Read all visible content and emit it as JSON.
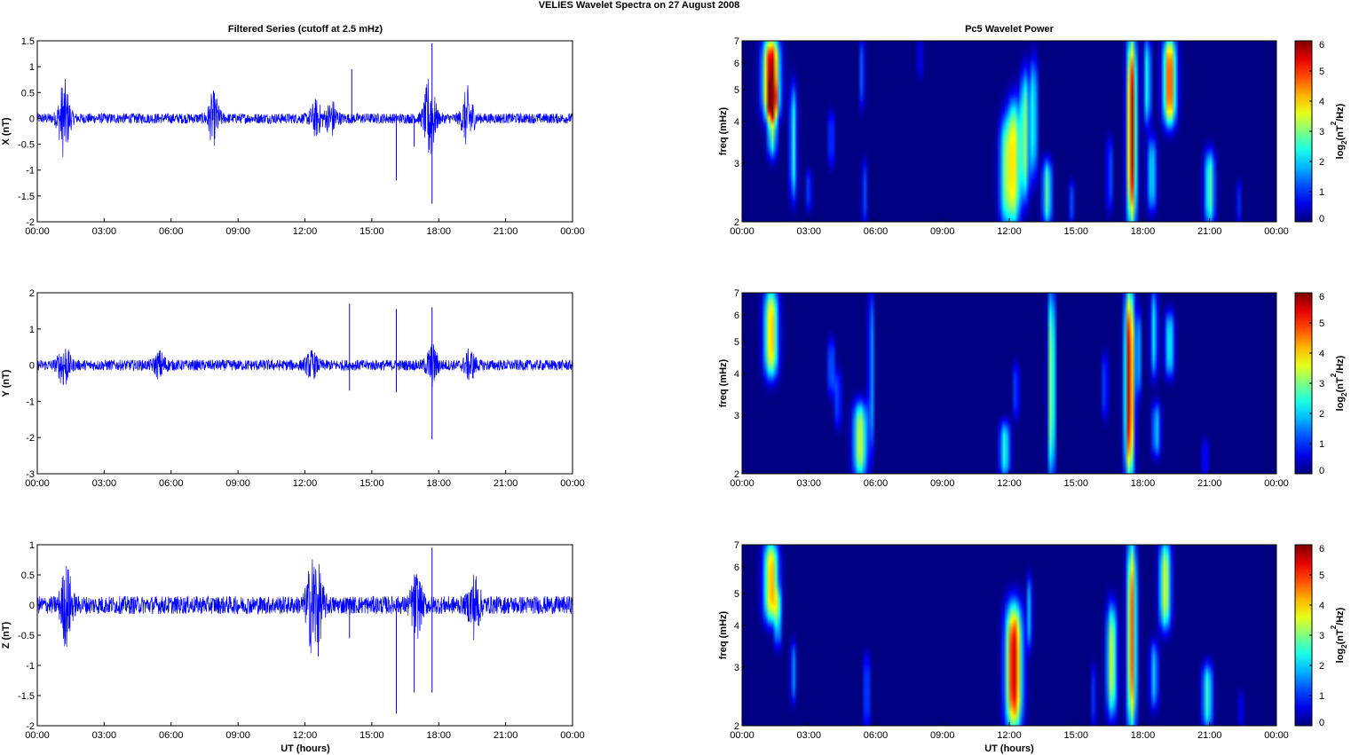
{
  "figure_title": "VELIES Wavelet Spectra on 27 August     2008",
  "left_title": "Filtered Series (cutoff at 2.5 mHz)",
  "right_title": "Pc5 Wavelet Power",
  "x_label": "UT (hours)",
  "x_tick_labels": [
    "00:00",
    "03:00",
    "06:00",
    "09:00",
    "12:00",
    "15:00",
    "18:00",
    "21:00",
    "00:00"
  ],
  "colors": {
    "trace": "#0000ff",
    "axes": "#000000",
    "background": "#ffffff"
  },
  "colorscale": "jet",
  "chart_data": [
    {
      "id": "x-series",
      "type": "line",
      "panel": "left",
      "row": 0,
      "ylabel": "X (nT)",
      "xlim": [
        0,
        24
      ],
      "ylim": [
        -2,
        1.5
      ],
      "yticks": [
        -2,
        -1.5,
        -1,
        -0.5,
        0,
        0.5,
        1,
        1.5
      ],
      "ytick_labels": [
        "-2",
        "-1.5",
        "-1",
        "-0.5",
        "0",
        "0.5",
        "1",
        "1.5"
      ],
      "baseline_amplitude": 0.1,
      "bursts": [
        {
          "t": 1.2,
          "amp": 0.7
        },
        {
          "t": 7.9,
          "amp": 0.45
        },
        {
          "t": 12.5,
          "amp": 0.3
        },
        {
          "t": 13.2,
          "amp": 0.3
        },
        {
          "t": 17.6,
          "amp": 0.8
        },
        {
          "t": 19.3,
          "amp": 0.55
        }
      ],
      "spikes": [
        {
          "t": 14.1,
          "min": -0.1,
          "max": 0.95
        },
        {
          "t": 16.1,
          "min": -1.2,
          "max": 0.05
        },
        {
          "t": 16.9,
          "min": -0.55,
          "max": 0.05
        },
        {
          "t": 17.7,
          "min": -1.65,
          "max": 1.45
        }
      ]
    },
    {
      "id": "y-series",
      "type": "line",
      "panel": "left",
      "row": 1,
      "ylabel": "Y (nT)",
      "xlim": [
        0,
        24
      ],
      "ylim": [
        -3,
        2
      ],
      "yticks": [
        -3,
        -2,
        -1,
        0,
        1,
        2
      ],
      "ytick_labels": [
        "-3",
        "-2",
        "-1",
        "0",
        "1",
        "2"
      ],
      "baseline_amplitude": 0.15,
      "bursts": [
        {
          "t": 1.2,
          "amp": 0.55
        },
        {
          "t": 5.5,
          "amp": 0.3
        },
        {
          "t": 12.3,
          "amp": 0.3
        },
        {
          "t": 17.7,
          "amp": 0.5
        },
        {
          "t": 19.4,
          "amp": 0.35
        }
      ],
      "spikes": [
        {
          "t": 14.0,
          "min": -0.7,
          "max": 1.7
        },
        {
          "t": 16.1,
          "min": -0.75,
          "max": 1.55
        },
        {
          "t": 17.7,
          "min": -2.05,
          "max": 1.6
        }
      ]
    },
    {
      "id": "z-series",
      "type": "line",
      "panel": "left",
      "row": 2,
      "ylabel": "Z (nT)",
      "xlim": [
        0,
        24
      ],
      "ylim": [
        -2,
        1
      ],
      "yticks": [
        -2,
        -1.5,
        -1,
        -0.5,
        0,
        0.5,
        1
      ],
      "ytick_labels": [
        "-2",
        "-1.5",
        "-1",
        "-0.5",
        "0",
        "0.5",
        "1"
      ],
      "baseline_amplitude": 0.15,
      "bursts": [
        {
          "t": 1.3,
          "amp": 0.6
        },
        {
          "t": 12.3,
          "amp": 0.6
        },
        {
          "t": 12.6,
          "amp": 0.45
        },
        {
          "t": 17.0,
          "amp": 0.45
        },
        {
          "t": 19.6,
          "amp": 0.45
        }
      ],
      "spikes": [
        {
          "t": 12.6,
          "min": -0.85,
          "max": 0.1
        },
        {
          "t": 14.0,
          "min": -0.55,
          "max": 0.1
        },
        {
          "t": 16.1,
          "min": -1.8,
          "max": 0.1
        },
        {
          "t": 16.9,
          "min": -1.45,
          "max": 0.25
        },
        {
          "t": 17.7,
          "min": -1.45,
          "max": 0.95
        }
      ]
    },
    {
      "id": "x-wavelet",
      "type": "heatmap",
      "panel": "right",
      "row": 0,
      "ylabel": "freq (mHz)",
      "y_scale": "log",
      "xlim": [
        0,
        24
      ],
      "ylim": [
        2,
        7
      ],
      "yticks": [
        2,
        3,
        4,
        5,
        6,
        7
      ],
      "ytick_labels": [
        "2",
        "3",
        "4",
        "5",
        "6",
        "7"
      ],
      "color_range": [
        0,
        6
      ],
      "colorbar_label_main": "log",
      "colorbar_label_sub": "2",
      "colorbar_label_paren": "(nT",
      "colorbar_label_sup": "2",
      "colorbar_label_end": "/Hz)",
      "colorbar_ticks": [
        "0",
        "1",
        "2",
        "3",
        "4",
        "5",
        "6"
      ],
      "blobs": [
        {
          "t": 1.3,
          "f_lo": 4.2,
          "f_hi": 7.0,
          "power": 6.0,
          "width": 0.35
        },
        {
          "t": 1.35,
          "f_lo": 3.2,
          "f_hi": 5.0,
          "power": 3.0,
          "width": 0.2
        },
        {
          "t": 2.3,
          "f_lo": 2.4,
          "f_hi": 5.0,
          "power": 2.5,
          "width": 0.15
        },
        {
          "t": 3.0,
          "f_lo": 2.2,
          "f_hi": 2.8,
          "power": 1.2,
          "width": 0.12
        },
        {
          "t": 4.0,
          "f_lo": 3.0,
          "f_hi": 4.2,
          "power": 1.5,
          "width": 0.12
        },
        {
          "t": 5.5,
          "f_lo": 2.0,
          "f_hi": 3.0,
          "power": 1.2,
          "width": 0.12
        },
        {
          "t": 5.4,
          "f_lo": 4.5,
          "f_hi": 7.0,
          "power": 1.5,
          "width": 0.1
        },
        {
          "t": 8.0,
          "f_lo": 5.5,
          "f_hi": 7.0,
          "power": 1.0,
          "width": 0.1
        },
        {
          "t": 11.8,
          "f_lo": 2.0,
          "f_hi": 4.0,
          "power": 2.5,
          "width": 0.25
        },
        {
          "t": 12.2,
          "f_lo": 2.0,
          "f_hi": 4.5,
          "power": 3.8,
          "width": 0.28
        },
        {
          "t": 12.7,
          "f_lo": 2.4,
          "f_hi": 5.5,
          "power": 3.0,
          "width": 0.2
        },
        {
          "t": 13.1,
          "f_lo": 2.8,
          "f_hi": 6.0,
          "power": 2.5,
          "width": 0.15
        },
        {
          "t": 13.7,
          "f_lo": 2.0,
          "f_hi": 3.0,
          "power": 2.8,
          "width": 0.2
        },
        {
          "t": 14.8,
          "f_lo": 2.0,
          "f_hi": 2.6,
          "power": 1.2,
          "width": 0.12
        },
        {
          "t": 16.5,
          "f_lo": 2.2,
          "f_hi": 3.5,
          "power": 1.5,
          "width": 0.12
        },
        {
          "t": 17.5,
          "f_lo": 2.0,
          "f_hi": 7.0,
          "power": 5.8,
          "width": 0.2
        },
        {
          "t": 18.4,
          "f_lo": 2.2,
          "f_hi": 3.5,
          "power": 2.2,
          "width": 0.2
        },
        {
          "t": 18.2,
          "f_lo": 4.0,
          "f_hi": 7.0,
          "power": 2.5,
          "width": 0.15
        },
        {
          "t": 19.2,
          "f_lo": 4.0,
          "f_hi": 7.0,
          "power": 5.0,
          "width": 0.28
        },
        {
          "t": 21.0,
          "f_lo": 2.0,
          "f_hi": 3.2,
          "power": 2.8,
          "width": 0.22
        },
        {
          "t": 22.3,
          "f_lo": 2.0,
          "f_hi": 2.6,
          "power": 1.0,
          "width": 0.1
        }
      ]
    },
    {
      "id": "y-wavelet",
      "type": "heatmap",
      "panel": "right",
      "row": 1,
      "ylabel": "freq (mHz)",
      "y_scale": "log",
      "xlim": [
        0,
        24
      ],
      "ylim": [
        2,
        7
      ],
      "yticks": [
        2,
        3,
        4,
        5,
        6,
        7
      ],
      "ytick_labels": [
        "2",
        "3",
        "4",
        "5",
        "6",
        "7"
      ],
      "color_range": [
        0,
        6
      ],
      "colorbar_label_main": "log",
      "colorbar_label_sub": "2",
      "colorbar_label_paren": "(nT",
      "colorbar_label_sup": "2",
      "colorbar_label_end": "/Hz)",
      "colorbar_ticks": [
        "0",
        "1",
        "2",
        "3",
        "4",
        "5",
        "6"
      ],
      "blobs": [
        {
          "t": 1.3,
          "f_lo": 4.0,
          "f_hi": 7.0,
          "power": 4.2,
          "width": 0.3
        },
        {
          "t": 4.0,
          "f_lo": 3.5,
          "f_hi": 5.0,
          "power": 1.5,
          "width": 0.15
        },
        {
          "t": 4.3,
          "f_lo": 2.8,
          "f_hi": 4.0,
          "power": 1.3,
          "width": 0.15
        },
        {
          "t": 5.3,
          "f_lo": 2.0,
          "f_hi": 3.2,
          "power": 3.5,
          "width": 0.3
        },
        {
          "t": 5.8,
          "f_lo": 2.4,
          "f_hi": 7.0,
          "power": 1.8,
          "width": 0.12
        },
        {
          "t": 11.8,
          "f_lo": 2.0,
          "f_hi": 2.8,
          "power": 2.5,
          "width": 0.22
        },
        {
          "t": 12.3,
          "f_lo": 3.0,
          "f_hi": 4.2,
          "power": 1.4,
          "width": 0.12
        },
        {
          "t": 13.9,
          "f_lo": 2.0,
          "f_hi": 7.0,
          "power": 3.6,
          "width": 0.14
        },
        {
          "t": 16.3,
          "f_lo": 3.0,
          "f_hi": 4.5,
          "power": 1.4,
          "width": 0.12
        },
        {
          "t": 17.4,
          "f_lo": 2.0,
          "f_hi": 7.0,
          "power": 5.8,
          "width": 0.2
        },
        {
          "t": 17.8,
          "f_lo": 3.5,
          "f_hi": 6.0,
          "power": 1.8,
          "width": 0.12
        },
        {
          "t": 18.6,
          "f_lo": 2.3,
          "f_hi": 3.2,
          "power": 2.0,
          "width": 0.18
        },
        {
          "t": 18.5,
          "f_lo": 4.0,
          "f_hi": 7.0,
          "power": 2.2,
          "width": 0.15
        },
        {
          "t": 19.2,
          "f_lo": 4.0,
          "f_hi": 6.0,
          "power": 2.4,
          "width": 0.2
        },
        {
          "t": 20.8,
          "f_lo": 2.0,
          "f_hi": 2.5,
          "power": 1.1,
          "width": 0.12
        }
      ]
    },
    {
      "id": "z-wavelet",
      "type": "heatmap",
      "panel": "right",
      "row": 2,
      "ylabel": "freq (mHz)",
      "y_scale": "log",
      "xlim": [
        0,
        24
      ],
      "ylim": [
        2,
        7
      ],
      "yticks": [
        2,
        3,
        4,
        5,
        6,
        7
      ],
      "ytick_labels": [
        "2",
        "3",
        "4",
        "5",
        "6",
        "7"
      ],
      "color_range": [
        0,
        6
      ],
      "colorbar_label_main": "log",
      "colorbar_label_sub": "2",
      "colorbar_label_paren": "(nT",
      "colorbar_label_sup": "2",
      "colorbar_label_end": "/Hz)",
      "colorbar_ticks": [
        "0",
        "1",
        "2",
        "3",
        "4",
        "5",
        "6"
      ],
      "blobs": [
        {
          "t": 1.3,
          "f_lo": 4.2,
          "f_hi": 7.0,
          "power": 4.3,
          "width": 0.32
        },
        {
          "t": 1.6,
          "f_lo": 3.5,
          "f_hi": 5.0,
          "power": 2.0,
          "width": 0.15
        },
        {
          "t": 2.3,
          "f_lo": 2.4,
          "f_hi": 3.5,
          "power": 1.6,
          "width": 0.12
        },
        {
          "t": 5.6,
          "f_lo": 2.0,
          "f_hi": 3.2,
          "power": 1.6,
          "width": 0.12
        },
        {
          "t": 12.2,
          "f_lo": 2.0,
          "f_hi": 4.5,
          "power": 5.6,
          "width": 0.35
        },
        {
          "t": 12.9,
          "f_lo": 3.5,
          "f_hi": 5.5,
          "power": 1.8,
          "width": 0.12
        },
        {
          "t": 15.8,
          "f_lo": 2.0,
          "f_hi": 3.0,
          "power": 1.2,
          "width": 0.1
        },
        {
          "t": 16.6,
          "f_lo": 2.2,
          "f_hi": 4.5,
          "power": 3.5,
          "width": 0.22
        },
        {
          "t": 17.5,
          "f_lo": 2.0,
          "f_hi": 7.0,
          "power": 4.8,
          "width": 0.2
        },
        {
          "t": 18.5,
          "f_lo": 2.3,
          "f_hi": 3.5,
          "power": 2.0,
          "width": 0.18
        },
        {
          "t": 19.0,
          "f_lo": 4.0,
          "f_hi": 7.0,
          "power": 3.6,
          "width": 0.25
        },
        {
          "t": 20.9,
          "f_lo": 2.0,
          "f_hi": 3.0,
          "power": 2.6,
          "width": 0.22
        },
        {
          "t": 22.4,
          "f_lo": 2.0,
          "f_hi": 2.5,
          "power": 1.0,
          "width": 0.1
        }
      ]
    }
  ]
}
